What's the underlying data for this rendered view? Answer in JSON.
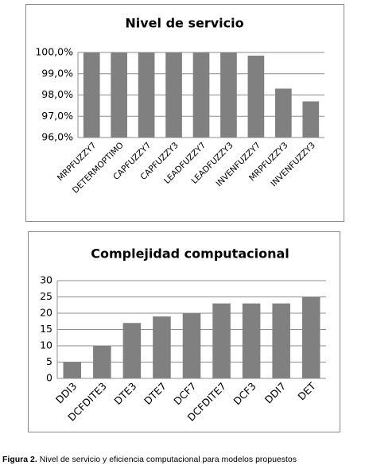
{
  "chart_data": [
    {
      "type": "bar",
      "title": "Nivel de servicio",
      "categories": [
        "MRPFUZZY7",
        "DETERMOPTIMO",
        "CAPFUZZY7",
        "CAPFUZZY3",
        "LEADFUZZY7",
        "LEADFUZZY3",
        "INVENFUZZY7",
        "MRPFUZZY3",
        "INVENFUZZY3"
      ],
      "values": [
        100,
        100,
        100,
        100,
        100,
        100,
        99.85,
        98.3,
        97.7
      ],
      "color": "#808080",
      "ylim": [
        96,
        100
      ],
      "yticks": [
        {
          "value": 96,
          "label": "96,0%"
        },
        {
          "value": 97,
          "label": "97,0%"
        },
        {
          "value": 98,
          "label": "98,0%"
        },
        {
          "value": 99,
          "label": "99,0%"
        },
        {
          "value": 100,
          "label": "100,0%"
        }
      ],
      "grid": true
    },
    {
      "type": "bar",
      "title": "Complejidad computacional",
      "categories": [
        "DDI3",
        "DCFDITE3",
        "DTE3",
        "DTE7",
        "DCF7",
        "DCFDITE7",
        "DCF3",
        "DDI7",
        "DET"
      ],
      "values": [
        5,
        10,
        17,
        19,
        20,
        23,
        23,
        23,
        25
      ],
      "color": "#808080",
      "ylim": [
        0,
        30
      ],
      "yticks": [
        0,
        5,
        10,
        15,
        20,
        25,
        30
      ],
      "grid": true
    }
  ],
  "caption": {
    "label": "Figura 2.",
    "text": "Nivel de servicio y eficiencia computacional para modelos propuestos"
  }
}
